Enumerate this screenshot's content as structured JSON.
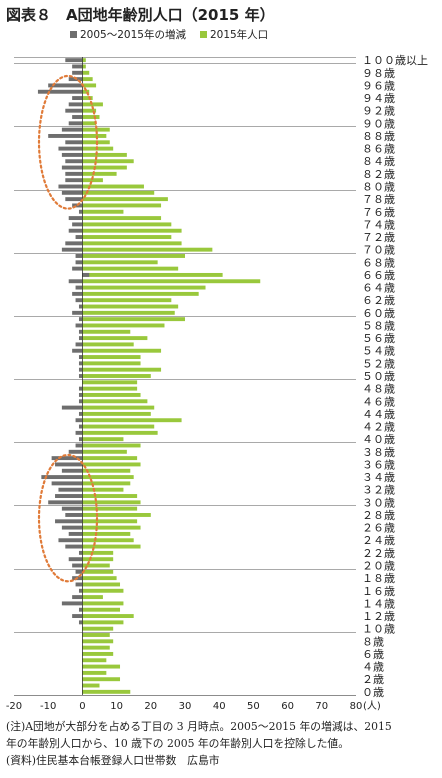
{
  "title": "図表８　A団地年齢別人口（2015 年）",
  "chart_data": {
    "type": "bar",
    "orientation": "horizontal",
    "series": [
      {
        "name": "2005～2015年の増減",
        "color": "#6e6e6e",
        "values": [
          0,
          0,
          0,
          0,
          0,
          0,
          0,
          0,
          0,
          0,
          0,
          -1,
          -3,
          -1,
          -6,
          -3,
          -1,
          -2,
          -3,
          -2,
          -3,
          -4,
          -1,
          -5,
          -7,
          -4,
          -6,
          -8,
          -5,
          -6,
          -10,
          -8,
          -7,
          -9,
          -12,
          -6,
          -8,
          -9,
          -4,
          -2,
          -1,
          -2,
          -1,
          -2,
          -1,
          -6,
          -1,
          -1,
          -1,
          0,
          -1,
          -1,
          -1,
          -1,
          -3,
          -2,
          -1,
          -1,
          -2,
          -1,
          -3,
          -1,
          -2,
          -3,
          -2,
          -4,
          2,
          -3,
          -2,
          -2,
          -6,
          -5,
          -2,
          -4,
          -3,
          -4,
          -1,
          -3,
          -5,
          -6,
          -7,
          -5,
          -5,
          -6,
          -5,
          -6,
          -7,
          -5,
          -10,
          -6,
          -4,
          -3,
          -5,
          -4,
          -3,
          -13,
          -10,
          -4,
          -3,
          -3,
          -5
        ],
        "tooltip": "(人)"
      },
      {
        "name": "2015年人口",
        "color": "#99c83c",
        "values": [
          14,
          5,
          11,
          7,
          11,
          7,
          9,
          8,
          9,
          8,
          9,
          12,
          15,
          11,
          12,
          6,
          12,
          11,
          10,
          9,
          8,
          9,
          9,
          17,
          15,
          14,
          17,
          16,
          20,
          16,
          17,
          16,
          12,
          14,
          15,
          14,
          17,
          16,
          13,
          17,
          12,
          22,
          21,
          29,
          20,
          21,
          19,
          17,
          16,
          16,
          20,
          23,
          17,
          17,
          23,
          15,
          19,
          14,
          24,
          30,
          27,
          28,
          26,
          34,
          36,
          52,
          41,
          28,
          22,
          30,
          38,
          29,
          26,
          29,
          26,
          23,
          12,
          23,
          25,
          21,
          18,
          6,
          10,
          13,
          15,
          13,
          9,
          8,
          7,
          8,
          4,
          5,
          4,
          6,
          3,
          2,
          4,
          3,
          2,
          1,
          1
        ]
      }
    ],
    "categories": [
      "０",
      "１",
      "２",
      "３",
      "４",
      "５",
      "６",
      "７",
      "８",
      "９",
      "10",
      "11",
      "12",
      "13",
      "14",
      "15",
      "16",
      "17",
      "18",
      "19",
      "20",
      "21",
      "22",
      "23",
      "24",
      "25",
      "26",
      "27",
      "28",
      "29",
      "30",
      "31",
      "32",
      "33",
      "34",
      "35",
      "36",
      "37",
      "38",
      "39",
      "40",
      "41",
      "42",
      "43",
      "44",
      "45",
      "46",
      "47",
      "48",
      "49",
      "50",
      "51",
      "52",
      "53",
      "54",
      "55",
      "56",
      "57",
      "58",
      "59",
      "60",
      "61",
      "62",
      "63",
      "64",
      "65",
      "66",
      "67",
      "68",
      "69",
      "70",
      "71",
      "72",
      "73",
      "74",
      "75",
      "76",
      "77",
      "78",
      "79",
      "80",
      "81",
      "82",
      "83",
      "84",
      "85",
      "86",
      "87",
      "88",
      "89",
      "90",
      "91",
      "92",
      "93",
      "94",
      "95",
      "96",
      "97",
      "98",
      "99",
      "100"
    ],
    "y_tick_labels": [
      {
        "age": 0,
        "label": "０歳"
      },
      {
        "age": 2,
        "label": "２歳"
      },
      {
        "age": 4,
        "label": "４歳"
      },
      {
        "age": 6,
        "label": "６歳"
      },
      {
        "age": 8,
        "label": "８歳"
      },
      {
        "age": 10,
        "label": "１０歳"
      },
      {
        "age": 12,
        "label": "１２歳"
      },
      {
        "age": 14,
        "label": "１４歳"
      },
      {
        "age": 16,
        "label": "１６歳"
      },
      {
        "age": 18,
        "label": "１８歳"
      },
      {
        "age": 20,
        "label": "２０歳"
      },
      {
        "age": 22,
        "label": "２２歳"
      },
      {
        "age": 24,
        "label": "２４歳"
      },
      {
        "age": 26,
        "label": "２６歳"
      },
      {
        "age": 28,
        "label": "２８歳"
      },
      {
        "age": 30,
        "label": "３０歳"
      },
      {
        "age": 32,
        "label": "３２歳"
      },
      {
        "age": 34,
        "label": "３４歳"
      },
      {
        "age": 36,
        "label": "３６歳"
      },
      {
        "age": 38,
        "label": "３８歳"
      },
      {
        "age": 40,
        "label": "４０歳"
      },
      {
        "age": 42,
        "label": "４２歳"
      },
      {
        "age": 44,
        "label": "４４歳"
      },
      {
        "age": 46,
        "label": "４６歳"
      },
      {
        "age": 48,
        "label": "４８歳"
      },
      {
        "age": 50,
        "label": "５０歳"
      },
      {
        "age": 52,
        "label": "５２歳"
      },
      {
        "age": 54,
        "label": "５４歳"
      },
      {
        "age": 56,
        "label": "５６歳"
      },
      {
        "age": 58,
        "label": "５８歳"
      },
      {
        "age": 60,
        "label": "６０歳"
      },
      {
        "age": 62,
        "label": "６２歳"
      },
      {
        "age": 64,
        "label": "６４歳"
      },
      {
        "age": 66,
        "label": "６６歳"
      },
      {
        "age": 68,
        "label": "６８歳"
      },
      {
        "age": 70,
        "label": "７０歳"
      },
      {
        "age": 72,
        "label": "７２歳"
      },
      {
        "age": 74,
        "label": "７４歳"
      },
      {
        "age": 76,
        "label": "７６歳"
      },
      {
        "age": 78,
        "label": "７８歳"
      },
      {
        "age": 80,
        "label": "８０歳"
      },
      {
        "age": 82,
        "label": "８２歳"
      },
      {
        "age": 84,
        "label": "８４歳"
      },
      {
        "age": 86,
        "label": "８６歳"
      },
      {
        "age": 88,
        "label": "８８歳"
      },
      {
        "age": 90,
        "label": "９０歳"
      },
      {
        "age": 92,
        "label": "９２歳"
      },
      {
        "age": 94,
        "label": "９４歳"
      },
      {
        "age": 96,
        "label": "９６歳"
      },
      {
        "age": 98,
        "label": "９８歳"
      },
      {
        "age": 100,
        "label": "１００歳以上"
      }
    ],
    "x_ticks": [
      -20,
      -10,
      0,
      10,
      20,
      30,
      40,
      50,
      60,
      70,
      80
    ],
    "x_unit_label": "(人)",
    "xlim": [
      -20,
      80
    ],
    "gridlines_every_ages": 10,
    "annotations": [
      {
        "shape": "dashed-ellipse",
        "color": "#e07b39",
        "age_range": [
          77,
          97
        ],
        "x_center": -5
      },
      {
        "shape": "dashed-ellipse",
        "color": "#e07b39",
        "age_range": [
          18,
          37
        ],
        "x_center": -5
      }
    ]
  },
  "notes": [
    "(注)A団地が大部分を占める丁目の 3 月時点。2005～2015 年の増減は、2015",
    "年の年齢別人口から、10 歳下の 2005 年の年齢別人口を控除した値。",
    "(資料)住民基本台帳登録人口世帯数　広島市"
  ]
}
